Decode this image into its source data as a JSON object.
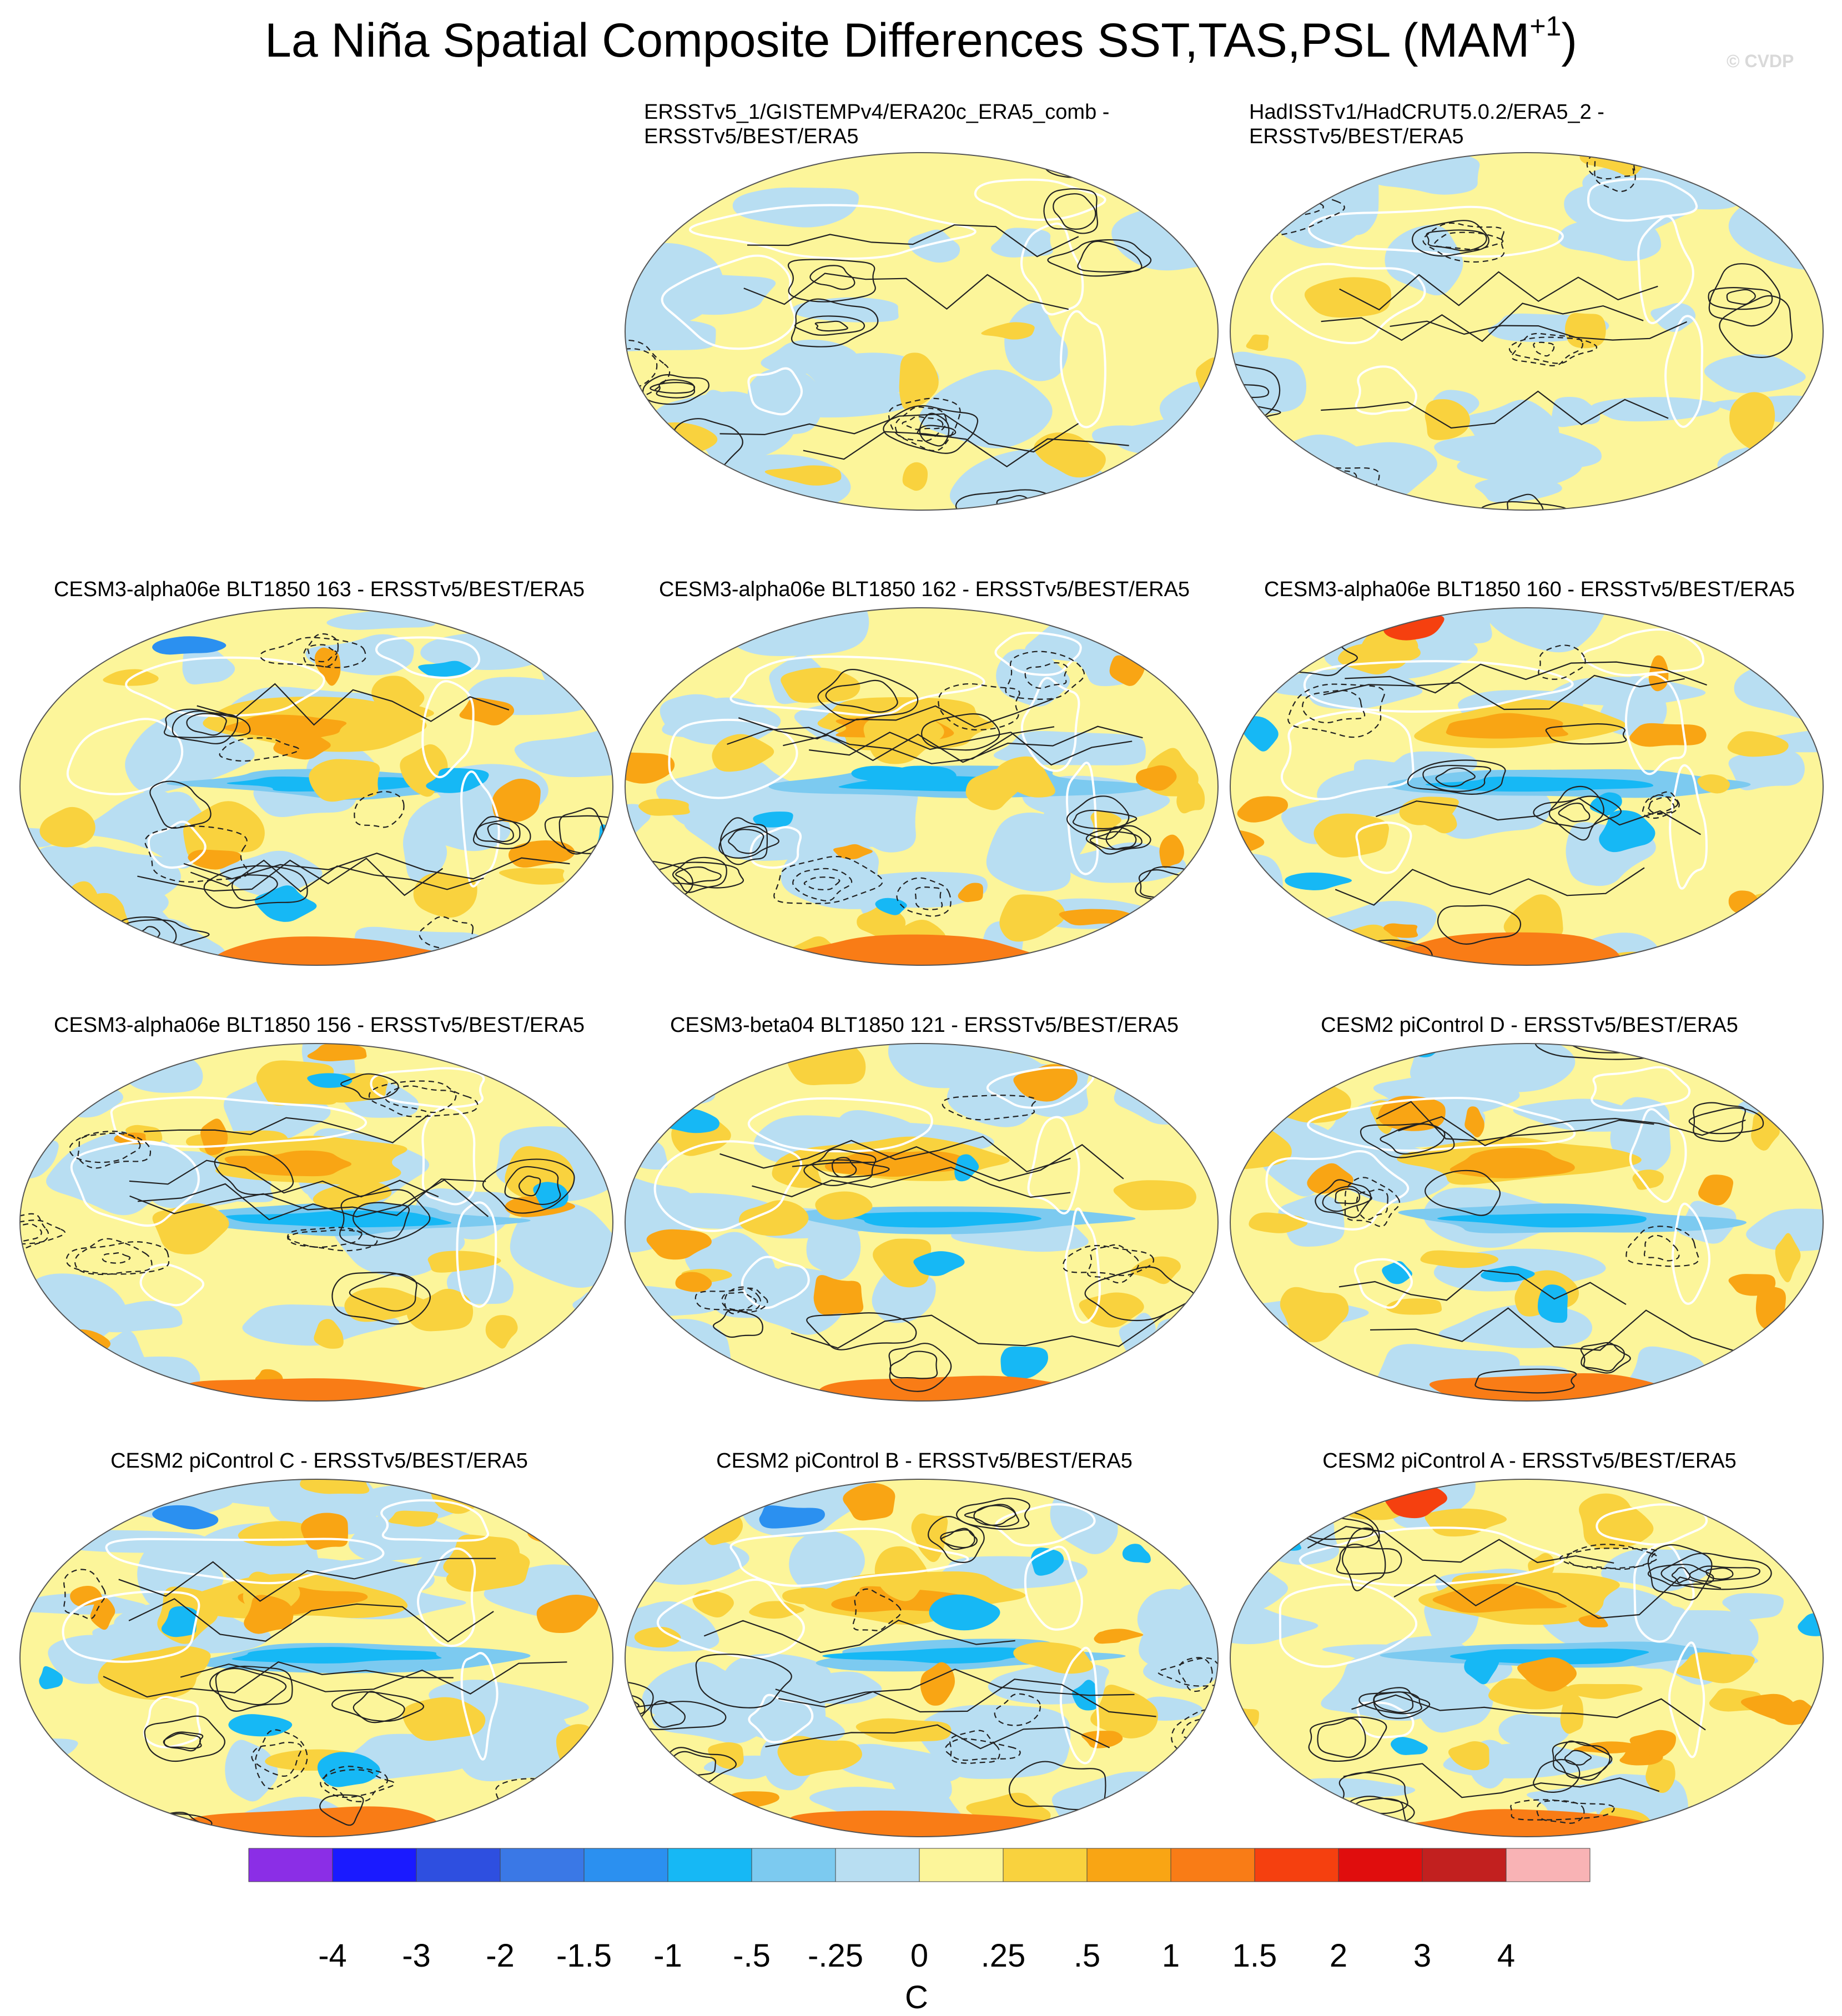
{
  "chart_data": {
    "type": "heatmap",
    "title": "La Niña Spatial Composite Differences SST,TAS,PSL (MAM",
    "title_sup": "+1",
    "title_close": ")",
    "credit": "© CVDP",
    "colorbar": {
      "labels": [
        "-4",
        "-3",
        "-2",
        "-1.5",
        "-1",
        "-.5",
        "-.25",
        "0",
        ".25",
        ".5",
        "1",
        "1.5",
        "2",
        "3",
        "4"
      ],
      "units": "C",
      "colors": [
        "#8b2ee6",
        "#1a1aff",
        "#2e4fe0",
        "#3a78e6",
        "#2b90f0",
        "#16b8f5",
        "#7ccaf0",
        "#b8def2",
        "#fcf59a",
        "#f9d23e",
        "#f9a514",
        "#f97c16",
        "#f5400f",
        "#e00d0d",
        "#c2201f",
        "#f9b3b5"
      ]
    },
    "panels": [
      {
        "title": "ERSSTv5_1/GISTEMPv4/ERA20c_ERA5_comb -\nERSSTv5/BEST/ERA5",
        "two_line": true
      },
      {
        "title": "HadISSTv1/HadCRUT5.0.2/ERA5_2 -\nERSSTv5/BEST/ERA5",
        "two_line": true
      },
      {
        "title": "CESM3-alpha06e BLT1850 163 - ERSSTv5/BEST/ERA5"
      },
      {
        "title": "CESM3-alpha06e BLT1850 162 - ERSSTv5/BEST/ERA5"
      },
      {
        "title": "CESM3-alpha06e BLT1850 160 - ERSSTv5/BEST/ERA5"
      },
      {
        "title": "CESM3-alpha06e BLT1850 156 - ERSSTv5/BEST/ERA5"
      },
      {
        "title": "CESM3-beta04 BLT1850 121 - ERSSTv5/BEST/ERA5"
      },
      {
        "title": "CESM2 piControl D - ERSSTv5/BEST/ERA5"
      },
      {
        "title": "CESM2 piControl C - ERSSTv5/BEST/ERA5"
      },
      {
        "title": "CESM2 piControl B - ERSSTv5/BEST/ERA5"
      },
      {
        "title": "CESM2 piControl A - ERSSTv5/BEST/ERA5"
      }
    ]
  }
}
